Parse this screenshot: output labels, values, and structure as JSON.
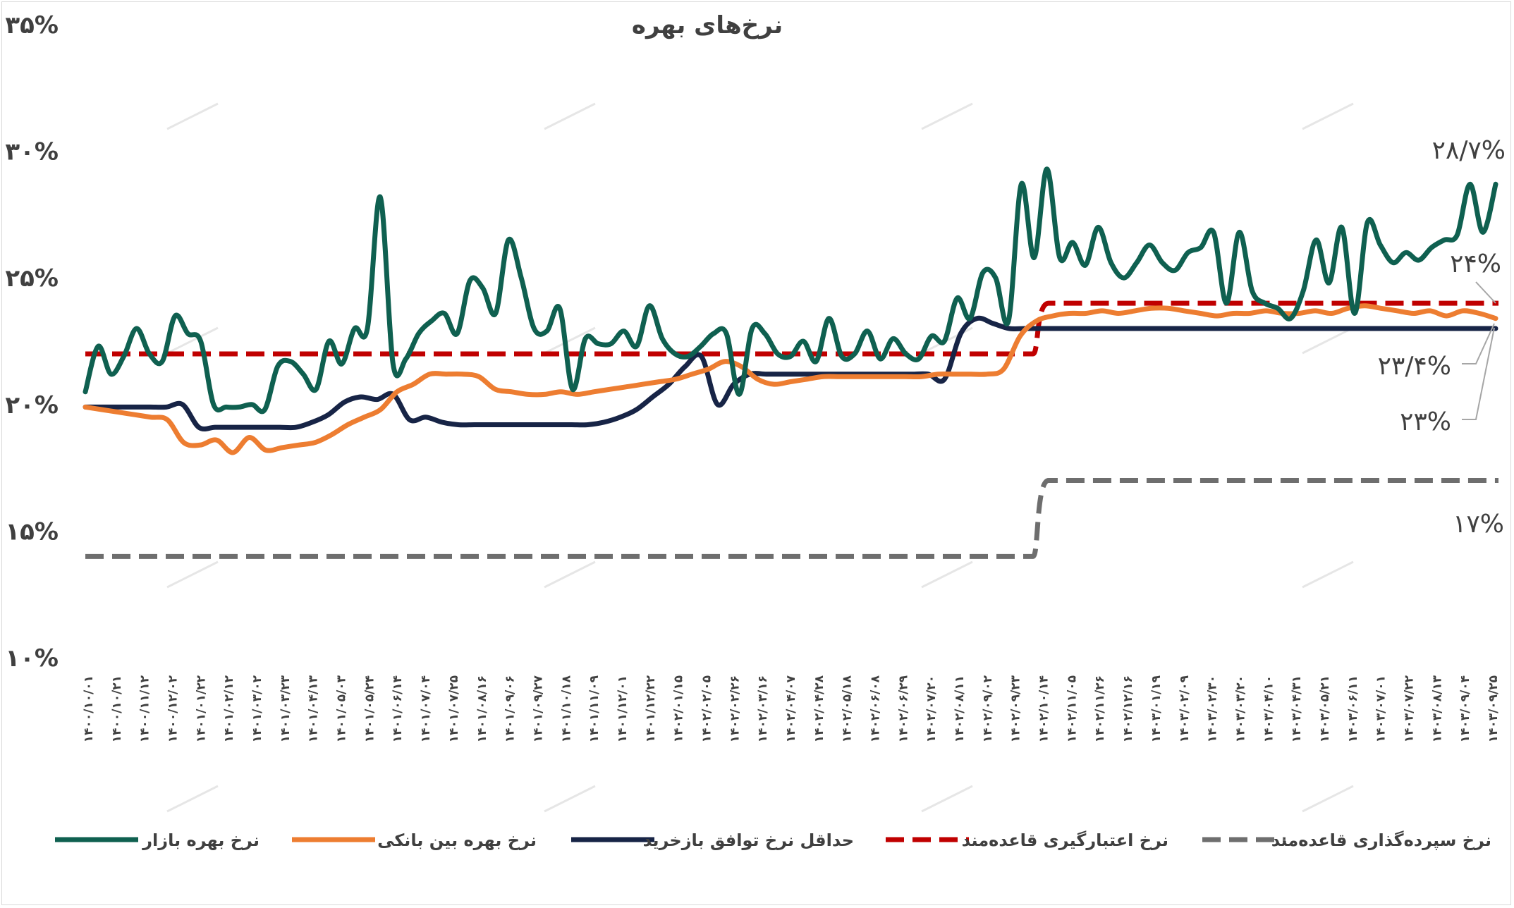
{
  "chart_data": {
    "type": "line",
    "title": "نرخ‌های بهره",
    "xlabel": "",
    "ylabel": "",
    "ylim": [
      10,
      35
    ],
    "grid": false,
    "legend_position": "bottom",
    "y_ticks": [
      "۱۰%",
      "۱۵%",
      "۲۰%",
      "۲۵%",
      "۳۰%",
      "۳۵%"
    ],
    "x_tick_labels": [
      "۱۴۰۰/۱۰/۰۱",
      "۱۴۰۰/۱۰/۲۱",
      "۱۴۰۰/۱۱/۱۲",
      "۱۴۰۰/۱۲/۰۲",
      "۱۴۰۱/۰۱/۲۲",
      "۱۴۰۱/۰۲/۱۲",
      "۱۴۰۱/۰۳/۰۲",
      "۱۴۰۱/۰۳/۲۳",
      "۱۴۰۱/۰۴/۱۳",
      "۱۴۰۱/۰۵/۰۳",
      "۱۴۰۱/۰۵/۲۴",
      "۱۴۰۱/۰۶/۱۴",
      "۱۴۰۱/۰۷/۰۴",
      "۱۴۰۱/۰۷/۲۵",
      "۱۴۰۱/۰۸/۱۶",
      "۱۴۰۱/۰۹/۰۶",
      "۱۴۰۱/۰۹/۲۷",
      "۱۴۰۱/۱۰/۱۸",
      "۱۴۰۱/۱۱/۰۹",
      "۱۴۰۱/۱۲/۰۱",
      "۱۴۰۱/۱۲/۲۲",
      "۱۴۰۲/۰۱/۱۵",
      "۱۴۰۲/۰۲/۰۵",
      "۱۴۰۲/۰۲/۲۶",
      "۱۴۰۲/۰۳/۱۶",
      "۱۴۰۲/۰۴/۰۷",
      "۱۴۰۲/۰۴/۲۸",
      "۱۴۰۲/۰۵/۱۸",
      "۱۴۰۲/۰۶/۰۸",
      "۱۴۰۲/۰۶/۲۹",
      "۱۴۰۲/۰۷/۲۰",
      "۱۴۰۲/۰۸/۱۱",
      "۱۴۰۲/۰۹/۰۲",
      "۱۴۰۲/۰۹/۲۳",
      "۱۴۰۲/۱۰/۱۴",
      "۱۴۰۲/۱۱/۰۵",
      "۱۴۰۲/۱۱/۲۶",
      "۱۴۰۲/۱۲/۱۶",
      "۱۴۰۳/۰۱/۱۹",
      "۱۴۰۳/۰۲/۰۹",
      "۱۴۰۳/۰۲/۳۰",
      "۱۴۰۳/۰۳/۲۰",
      "۱۴۰۳/۰۴/۱۰",
      "۱۴۰۳/۰۴/۳۱",
      "۱۴۰۳/۰۵/۲۱",
      "۱۴۰۳/۰۶/۱۱",
      "۱۴۰۳/۰۷/۰۱",
      "۱۴۰۳/۰۷/۲۲",
      "۱۴۰۳/۰۸/۱۳",
      "۱۴۰۳/۰۹/۰۴",
      "۱۴۰۳/۰۹/۲۵"
    ],
    "series": [
      {
        "name": "نرخ بهره بازار",
        "color": "#0f6050",
        "style": "solid",
        "values": [
          20.5,
          22.3,
          21.2,
          21.9,
          23.0,
          22.0,
          21.7,
          23.5,
          22.8,
          22.5,
          20.0,
          19.9,
          19.9,
          20.0,
          19.8,
          21.5,
          21.7,
          21.2,
          20.6,
          22.5,
          21.6,
          23.0,
          23.0,
          28.2,
          21.6,
          21.8,
          22.8,
          23.3,
          23.6,
          22.8,
          24.9,
          24.6,
          23.6,
          26.5,
          25.0,
          23.0,
          22.9,
          23.8,
          20.6,
          22.6,
          22.4,
          22.4,
          22.9,
          22.3,
          23.9,
          22.6,
          22.0,
          21.9,
          22.3,
          22.8,
          22.8,
          20.4,
          23.0,
          22.8,
          22.0,
          21.9,
          22.5,
          21.7,
          23.4,
          21.9,
          22.0,
          22.9,
          21.8,
          22.6,
          22.0,
          21.8,
          22.7,
          22.5,
          24.2,
          23.4,
          25.2,
          25.0,
          23.3,
          28.7,
          25.8,
          29.3,
          25.8,
          26.4,
          25.5,
          27.0,
          25.6,
          25.0,
          25.6,
          26.3,
          25.6,
          25.3,
          26.0,
          26.2,
          26.8,
          24.0,
          26.8,
          24.5,
          24.0,
          23.8,
          23.4,
          24.5,
          26.5,
          24.8,
          27.0,
          23.6,
          27.2,
          26.3,
          25.6,
          26.0,
          25.7,
          26.2,
          26.5,
          26.7,
          28.7,
          26.8,
          28.7
        ]
      },
      {
        "name": "نرخ بهره بین بانکی",
        "color": "#ed7d31",
        "style": "solid",
        "values": [
          19.9,
          19.8,
          19.7,
          19.6,
          19.5,
          19.4,
          18.5,
          18.4,
          18.6,
          18.1,
          18.7,
          18.2,
          18.3,
          18.4,
          18.5,
          18.8,
          19.2,
          19.5,
          19.8,
          20.5,
          20.8,
          21.2,
          21.2,
          21.2,
          21.1,
          20.6,
          20.5,
          20.4,
          20.4,
          20.5,
          20.4,
          20.5,
          20.6,
          20.7,
          20.8,
          20.9,
          21.0,
          21.2,
          21.4,
          21.7,
          21.5,
          21.0,
          20.8,
          20.9,
          21.0,
          21.1,
          21.1,
          21.1,
          21.1,
          21.1,
          21.1,
          21.1,
          21.2,
          21.2,
          21.2,
          21.2,
          21.4,
          22.7,
          23.3,
          23.5,
          23.6,
          23.6,
          23.7,
          23.6,
          23.7,
          23.8,
          23.8,
          23.7,
          23.6,
          23.5,
          23.6,
          23.6,
          23.7,
          23.6,
          23.6,
          23.7,
          23.6,
          23.8,
          23.9,
          23.8,
          23.7,
          23.6,
          23.7,
          23.5,
          23.7,
          23.6,
          23.4
        ]
      },
      {
        "name": "حداقل نرخ توافق بازخرید",
        "color": "#172446",
        "style": "solid",
        "values": [
          19.9,
          19.9,
          19.9,
          19.9,
          19.9,
          19.9,
          20.0,
          19.1,
          19.1,
          19.1,
          19.1,
          19.1,
          19.1,
          19.1,
          19.3,
          19.6,
          20.1,
          20.3,
          20.2,
          20.4,
          19.4,
          19.5,
          19.3,
          19.2,
          19.2,
          19.2,
          19.2,
          19.2,
          19.2,
          19.2,
          19.2,
          19.2,
          19.3,
          19.5,
          19.8,
          20.3,
          20.8,
          21.5,
          21.9,
          20.0,
          20.8,
          21.2,
          21.2,
          21.2,
          21.2,
          21.2,
          21.2,
          21.2,
          21.2,
          21.2,
          21.2,
          21.2,
          21.2,
          21.0,
          22.8,
          23.4,
          23.2,
          23.0,
          23.0,
          23.0,
          23.0,
          23.0,
          23.0,
          23.0,
          23.0,
          23.0,
          23.0,
          23.0,
          23.0,
          23.0,
          23.0,
          23.0,
          23.0,
          23.0,
          23.0,
          23.0,
          23.0,
          23.0,
          23.0,
          23.0,
          23.0,
          23.0,
          23.0,
          23.0,
          23.0,
          23.0,
          23.0,
          23.0
        ]
      },
      {
        "name": "نرخ اعتبارگیری قاعده‌مند",
        "color": "#c00000",
        "style": "dashed",
        "values": [
          22.0,
          22.0,
          24.0,
          24.0
        ]
      },
      {
        "name": "نرخ سپرده‌گذاری قاعده‌مند",
        "color": "#6e6e6e",
        "style": "dashed",
        "values": [
          14.0,
          14.0,
          17.0,
          17.0
        ]
      }
    ],
    "annotations": [
      {
        "text": "۲۸/۷%"
      },
      {
        "text": "۲۴%"
      },
      {
        "text": "۲۳/۴%"
      },
      {
        "text": "۲۳%"
      },
      {
        "text": "۱۷%"
      }
    ]
  }
}
